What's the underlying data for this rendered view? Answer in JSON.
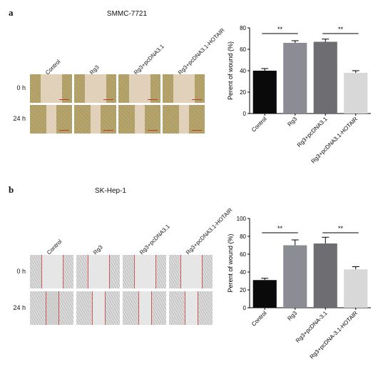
{
  "panels": [
    {
      "id": "a",
      "letter": "a",
      "title": "SMMC-7721",
      "micro_columns": [
        "Control",
        "Rg3",
        "Rg3+pcDNA3.1",
        "Rg3+pcDNA3.1-HOTAIR"
      ],
      "micro_rows": [
        "0 h",
        "24 h"
      ],
      "micro_style": "color",
      "chart_data": {
        "type": "bar",
        "categories": [
          "Control",
          "Rg3",
          "Rg3+pcDNA3.1",
          "Rg3+pcDNA3.1-HOTAIR"
        ],
        "values": [
          40,
          66,
          67,
          38
        ],
        "errors": [
          2,
          2,
          2.5,
          2
        ],
        "ylabel": "Perent of wound (%)",
        "ylim": [
          0,
          80
        ],
        "yticks": [
          0,
          20,
          40,
          60,
          80
        ],
        "bar_colors": [
          "#0a0a0a",
          "#8c8c94",
          "#6e6e72",
          "#d8d8d8"
        ],
        "significance": [
          {
            "from": 0,
            "to": 1,
            "label": "**"
          },
          {
            "from": 2,
            "to": 3,
            "label": "**"
          }
        ],
        "grid": false
      }
    },
    {
      "id": "b",
      "letter": "b",
      "title": "SK-Hep-1",
      "micro_columns": [
        "Control",
        "Rg3",
        "Rg3+pcDNA3.1",
        "Rg3+pcDNA3.1-HOTAIR"
      ],
      "micro_rows": [
        "0 h",
        "24 h"
      ],
      "micro_style": "gray",
      "chart_data": {
        "type": "bar",
        "categories": [
          "Control",
          "Rg3",
          "Rg3+pcDNA-3.1",
          "Rg3+pcDNA-3.1-HOTAIR"
        ],
        "values": [
          31,
          70,
          72,
          43
        ],
        "errors": [
          2,
          6,
          7,
          3
        ],
        "ylabel": "Perent of wound (%)",
        "ylim": [
          0,
          100
        ],
        "yticks": [
          0,
          20,
          40,
          60,
          80,
          100
        ],
        "bar_colors": [
          "#0a0a0a",
          "#8c8c94",
          "#6e6e72",
          "#d8d8d8"
        ],
        "significance": [
          {
            "from": 0,
            "to": 1,
            "label": "**"
          },
          {
            "from": 2,
            "to": 3,
            "label": "**"
          }
        ],
        "grid": false
      }
    }
  ]
}
